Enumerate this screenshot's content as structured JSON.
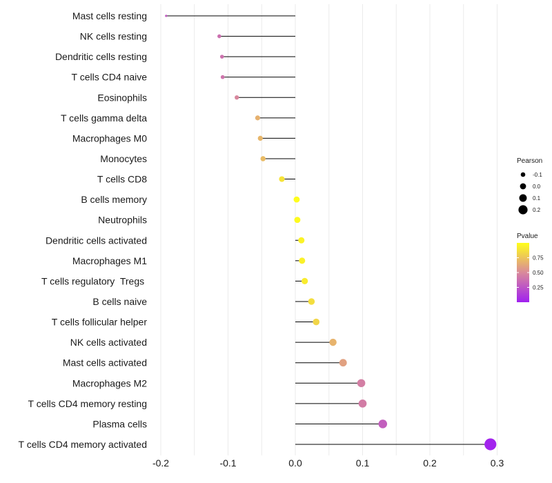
{
  "chart_data": {
    "type": "lollipop",
    "x_axis": {
      "ticks": [
        -0.2,
        -0.1,
        0.0,
        0.1,
        0.2,
        0.3
      ],
      "tick_labels": [
        "-0.2",
        "-0.1",
        "0.0",
        "0.1",
        "0.2",
        "0.3"
      ],
      "xlim": [
        -0.21,
        0.3
      ]
    },
    "rows": [
      {
        "label": "Mast cells resting",
        "value": -0.192,
        "pvalue": 0.28
      },
      {
        "label": "NK cells resting",
        "value": -0.113,
        "pvalue": 0.38
      },
      {
        "label": "Dendritic cells resting",
        "value": -0.109,
        "pvalue": 0.39
      },
      {
        "label": "T cells CD4 naive",
        "value": -0.108,
        "pvalue": 0.4
      },
      {
        "label": "Eosinophils",
        "value": -0.087,
        "pvalue": 0.49
      },
      {
        "label": "T cells gamma delta",
        "value": -0.056,
        "pvalue": 0.67
      },
      {
        "label": "Macrophages M0",
        "value": -0.052,
        "pvalue": 0.69
      },
      {
        "label": "Monocytes",
        "value": -0.048,
        "pvalue": 0.71
      },
      {
        "label": "T cells CD8",
        "value": -0.02,
        "pvalue": 0.88
      },
      {
        "label": "B cells memory",
        "value": 0.002,
        "pvalue": 0.99
      },
      {
        "label": "Neutrophils",
        "value": 0.003,
        "pvalue": 0.98
      },
      {
        "label": "Dendritic cells activated",
        "value": 0.009,
        "pvalue": 0.95
      },
      {
        "label": "Macrophages M1",
        "value": 0.01,
        "pvalue": 0.94
      },
      {
        "label": "T cells regulatory  Tregs ",
        "value": 0.014,
        "pvalue": 0.92
      },
      {
        "label": "B cells naive",
        "value": 0.024,
        "pvalue": 0.86
      },
      {
        "label": "T cells follicular helper",
        "value": 0.031,
        "pvalue": 0.82
      },
      {
        "label": "NK cells activated",
        "value": 0.056,
        "pvalue": 0.68
      },
      {
        "label": "Mast cells activated",
        "value": 0.071,
        "pvalue": 0.6
      },
      {
        "label": "Macrophages M2",
        "value": 0.098,
        "pvalue": 0.45
      },
      {
        "label": "T cells CD4 memory resting",
        "value": 0.1,
        "pvalue": 0.44
      },
      {
        "label": "Plasma cells",
        "value": 0.13,
        "pvalue": 0.3
      },
      {
        "label": "T cells CD4 memory activated",
        "value": 0.29,
        "pvalue": 0.02
      }
    ],
    "legend_size": {
      "title": "Pearson",
      "breaks": [
        -0.1,
        0.0,
        0.1,
        0.2
      ],
      "labels": [
        "-0.1",
        "0.0",
        "0.1",
        "0.2"
      ]
    },
    "legend_color": {
      "title": "Pvalue",
      "breaks": [
        0.25,
        0.5,
        0.75
      ],
      "labels": [
        "0.25",
        "0.50",
        "0.75"
      ],
      "range": [
        0.0,
        1.0
      ],
      "low_color": "#A020F0",
      "mid_color": "#D9899B",
      "high_color": "#FFFF1A"
    },
    "colors": {
      "stem": "#000000",
      "grid": "#ebebeb",
      "text": "#1a1a1a"
    }
  }
}
